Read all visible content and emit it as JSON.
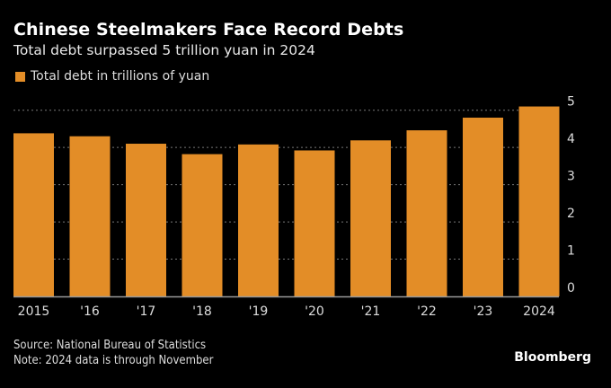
{
  "chart_data": {
    "type": "bar",
    "title": "Chinese Steelmakers Face Record Debts",
    "subtitle": "Total debt surpassed 5 trillion yuan in 2024",
    "legend": [
      {
        "name": "Total debt in trillions of yuan",
        "color": "#e38d27"
      }
    ],
    "legend_placement": "top-left",
    "categories": [
      "2015",
      "'16",
      "'17",
      "'18",
      "'19",
      "'20",
      "'21",
      "'22",
      "'23",
      "2024"
    ],
    "series": [
      {
        "name": "Total debt in trillions of yuan",
        "values": [
          4.38,
          4.3,
          4.1,
          3.82,
          4.08,
          3.92,
          4.19,
          4.46,
          4.8,
          5.1
        ]
      }
    ],
    "xlabel": "",
    "ylabel": "",
    "ylim": [
      0,
      5
    ],
    "yticks": [
      "0",
      "1",
      "2",
      "3",
      "4",
      "5"
    ],
    "y_axis_side": "right",
    "grid": true
  },
  "footer": {
    "source": "Source: National Bureau of Statistics",
    "note": "Note: 2024 data is through November",
    "brand": "Bloomberg"
  },
  "colors": {
    "bar": "#e38d27",
    "background": "#000000",
    "grid": "#777777",
    "baseline": "#999999"
  }
}
